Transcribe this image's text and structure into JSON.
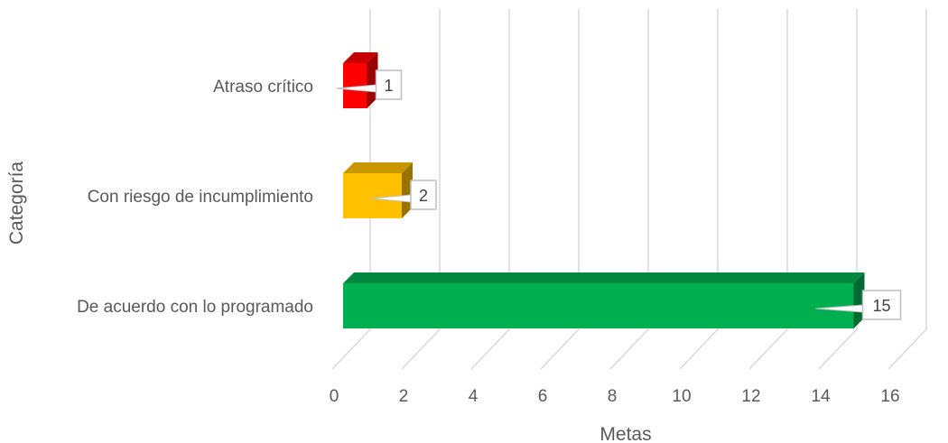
{
  "chart_data": {
    "type": "bar",
    "orientation": "horizontal",
    "style": "3d",
    "categories": [
      "Atraso crítico",
      "Con riesgo de incumplimiento",
      "De acuerdo con lo programado"
    ],
    "values": [
      1,
      2,
      15
    ],
    "colors": [
      "#ff0000",
      "#ffc000",
      "#00b050"
    ],
    "xlabel": "Metas",
    "ylabel": "Categoría",
    "xlim": [
      0,
      16
    ],
    "xticks": [
      "0",
      "2",
      "4",
      "6",
      "8",
      "10",
      "12",
      "14",
      "16"
    ],
    "data_labels": [
      "1",
      "2",
      "15"
    ],
    "grid": true,
    "legend": "none"
  }
}
